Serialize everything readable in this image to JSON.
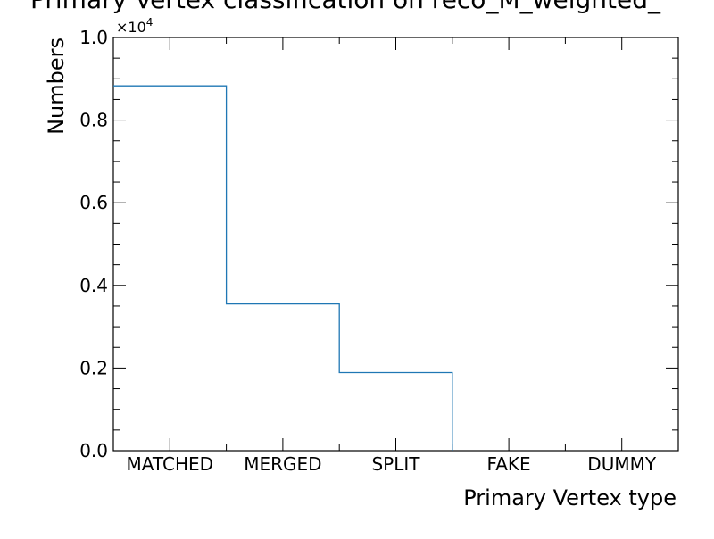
{
  "chart_data": {
    "type": "bar",
    "style": "step-histogram",
    "title": "Primary Vertex classification on reco_M_weighted_",
    "xlabel": "Primary Vertex type",
    "ylabel": "Numbers",
    "categories": [
      "MATCHED",
      "MERGED",
      "SPLIT",
      "FAKE",
      "DUMMY"
    ],
    "values": [
      8830,
      3550,
      1890,
      0,
      0
    ],
    "ylim": [
      0,
      10000
    ],
    "y_scale_multiplier": "×10",
    "y_scale_exponent": "4",
    "y_tick_labels": [
      "0.0",
      "0.2",
      "0.4",
      "0.6",
      "0.8",
      "1.0"
    ],
    "y_tick_values": [
      0,
      2000,
      4000,
      6000,
      8000,
      10000
    ],
    "y_minor_step": 500,
    "line_color": "#1f77b4",
    "grid": false,
    "legend": "none"
  }
}
